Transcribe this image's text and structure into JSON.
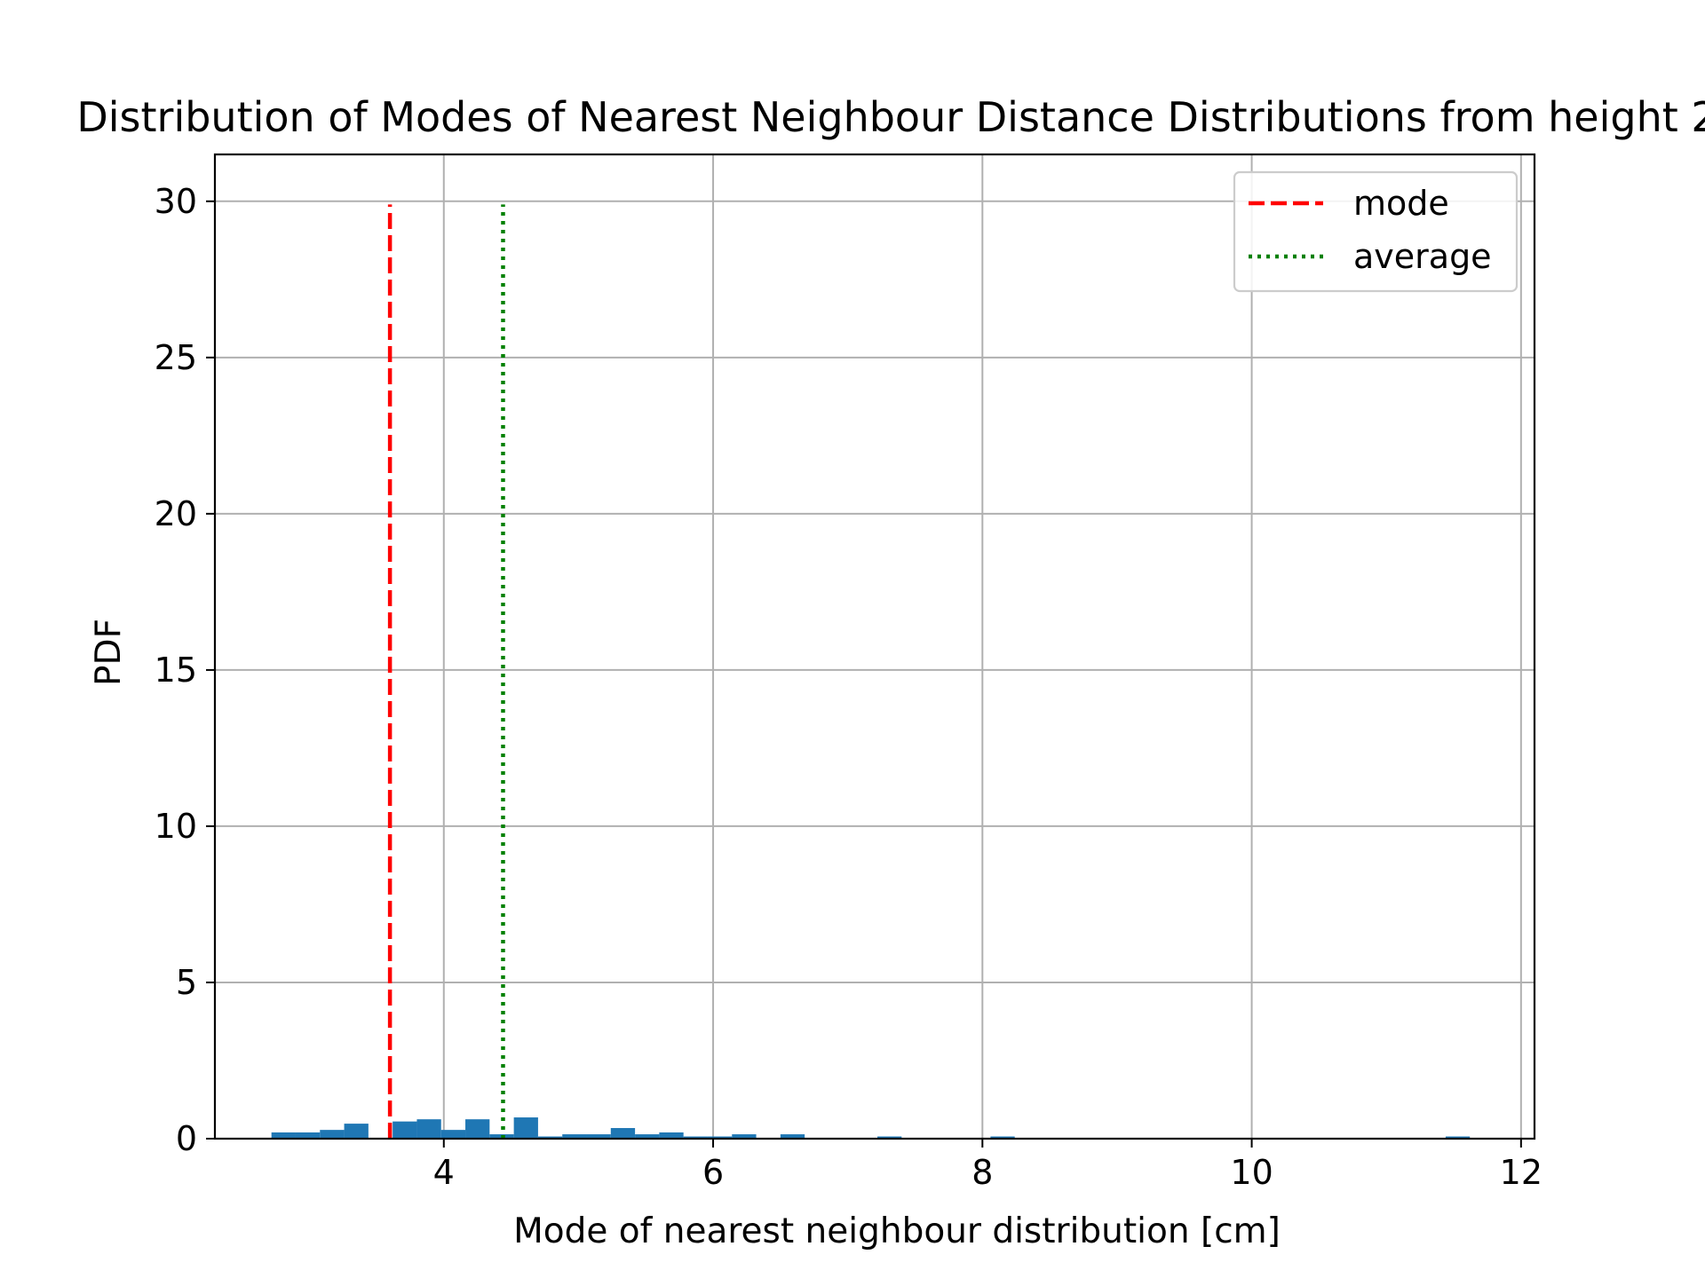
{
  "chart_data": {
    "type": "bar",
    "title": "Distribution of Modes of Nearest Neighbour Distance Distributions from height 2",
    "xlabel": "Mode of nearest neighbour distribution [cm]",
    "ylabel": "PDF",
    "xlim": [
      2.3,
      12.1
    ],
    "ylim": [
      0,
      31.5
    ],
    "xticks": [
      4,
      6,
      8,
      10,
      12
    ],
    "yticks": [
      0,
      5,
      10,
      15,
      20,
      25,
      30
    ],
    "grid": true,
    "legend_position": "top-right",
    "bar_color": "#1f77b4",
    "bins": [
      {
        "x0": 2.72,
        "x1": 2.9,
        "value": 0.2
      },
      {
        "x0": 2.9,
        "x1": 3.08,
        "value": 0.2
      },
      {
        "x0": 3.08,
        "x1": 3.26,
        "value": 0.28
      },
      {
        "x0": 3.26,
        "x1": 3.44,
        "value": 0.48
      },
      {
        "x0": 3.44,
        "x1": 3.62,
        "value": 0.0
      },
      {
        "x0": 3.62,
        "x1": 3.8,
        "value": 0.55
      },
      {
        "x0": 3.8,
        "x1": 3.98,
        "value": 0.62
      },
      {
        "x0": 3.98,
        "x1": 4.16,
        "value": 0.28
      },
      {
        "x0": 4.16,
        "x1": 4.34,
        "value": 0.62
      },
      {
        "x0": 4.34,
        "x1": 4.52,
        "value": 0.14
      },
      {
        "x0": 4.52,
        "x1": 4.7,
        "value": 0.68
      },
      {
        "x0": 4.7,
        "x1": 4.88,
        "value": 0.07
      },
      {
        "x0": 4.88,
        "x1": 5.06,
        "value": 0.14
      },
      {
        "x0": 5.06,
        "x1": 5.24,
        "value": 0.14
      },
      {
        "x0": 5.24,
        "x1": 5.42,
        "value": 0.34
      },
      {
        "x0": 5.42,
        "x1": 5.6,
        "value": 0.14
      },
      {
        "x0": 5.6,
        "x1": 5.78,
        "value": 0.2
      },
      {
        "x0": 5.78,
        "x1": 5.96,
        "value": 0.07
      },
      {
        "x0": 5.96,
        "x1": 6.14,
        "value": 0.07
      },
      {
        "x0": 6.14,
        "x1": 6.32,
        "value": 0.14
      },
      {
        "x0": 6.5,
        "x1": 6.68,
        "value": 0.14
      },
      {
        "x0": 7.22,
        "x1": 7.4,
        "value": 0.07
      },
      {
        "x0": 8.06,
        "x1": 8.24,
        "value": 0.07
      },
      {
        "x0": 11.44,
        "x1": 11.62,
        "value": 0.07
      }
    ],
    "reference_lines": [
      {
        "name": "mode",
        "x": 3.6,
        "ymax": 29.9,
        "color": "#ff0000",
        "style": "dashed"
      },
      {
        "name": "average",
        "x": 4.44,
        "ymax": 29.9,
        "color": "#008000",
        "style": "dotted"
      }
    ]
  }
}
